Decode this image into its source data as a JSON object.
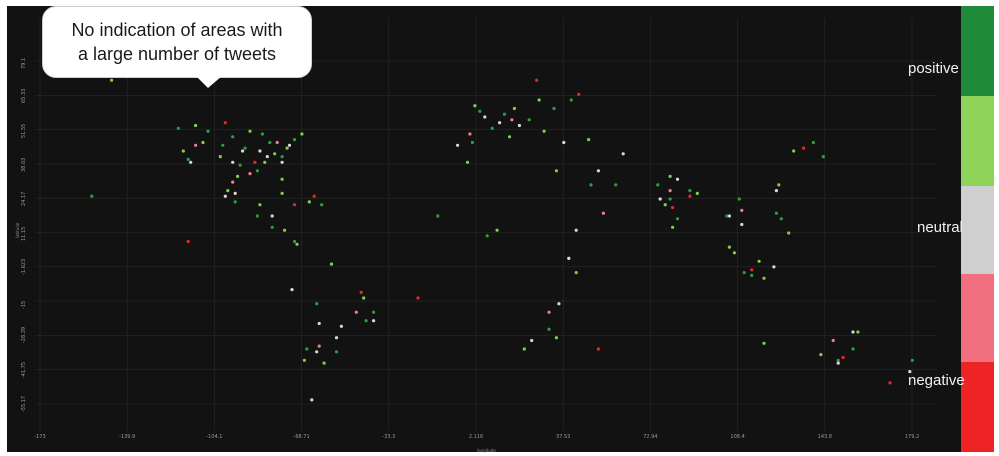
{
  "callout": {
    "lines": [
      "No indication of areas with",
      "a large number of tweets"
    ]
  },
  "legend": {
    "items": [
      {
        "label": "positive",
        "color": "#1f8b3a"
      },
      {
        "label": "",
        "color": "#8fd35a"
      },
      {
        "label": "neutral",
        "color": "#cfcfcf"
      },
      {
        "label": "",
        "color": "#f07080"
      },
      {
        "label": "negative",
        "color": "#ee2424"
      }
    ]
  },
  "colors": {
    "background": "#121212",
    "grid": "#2a2a2a",
    "tick": "#9a9a9a",
    "points": {
      "positive": "#2aa040",
      "light_positive": "#7ed04e",
      "neutral": "#d8d8d8",
      "light_negative": "#f27d8c",
      "negative": "#ee2424"
    }
  },
  "chart_data": {
    "type": "scatter",
    "title": "",
    "xlabel": "longitude",
    "ylabel": "latitude",
    "x_ticks": [
      "-173",
      "-139.9",
      "-104.1",
      "-68.71",
      "-33.3",
      "2.116",
      "37.53",
      "72.94",
      "108.4",
      "143.8",
      "179.2"
    ],
    "y_ticks": [
      "79.1",
      "65.33",
      "51.55",
      "38.03",
      "24.17",
      "11.15",
      "-1.623",
      "-15",
      "-28.39",
      "-41.75",
      "-55.17"
    ],
    "xlim": [
      -180,
      185
    ],
    "ylim": [
      -62,
      84
    ],
    "grid": true,
    "legend": "right",
    "series": [
      {
        "sentiment": "positive",
        "points": [
          [
            -118,
            34
          ],
          [
            -100,
            42
          ],
          [
            -95,
            38
          ],
          [
            -85,
            40
          ],
          [
            -80,
            35
          ],
          [
            -90,
            30
          ],
          [
            -110,
            44
          ],
          [
            -75,
            41
          ],
          [
            -122,
            45
          ],
          [
            -97,
            32
          ],
          [
            -88,
            43
          ],
          [
            -104,
            39
          ],
          [
            0,
            51
          ],
          [
            10,
            50
          ],
          [
            20,
            48
          ],
          [
            5,
            45
          ],
          [
            -3,
            40
          ],
          [
            30,
            52
          ],
          [
            37,
            55
          ],
          [
            77,
            20
          ],
          [
            72,
            25
          ],
          [
            80,
            13
          ],
          [
            85,
            23
          ],
          [
            100,
            14
          ],
          [
            105,
            20
          ],
          [
            120,
            15
          ],
          [
            122,
            13
          ],
          [
            110,
            -7
          ],
          [
            107,
            -6
          ],
          [
            139,
            35
          ],
          [
            135,
            40
          ],
          [
            -46,
            -23
          ],
          [
            -58,
            -34
          ],
          [
            -70,
            -33
          ],
          [
            -75,
            5
          ],
          [
            -66,
            -17
          ],
          [
            -43,
            -20
          ],
          [
            151,
            -33
          ],
          [
            145,
            -37
          ],
          [
            175,
            -37
          ],
          [
            28,
            -26
          ],
          [
            36,
            -1
          ],
          [
            3,
            7
          ],
          [
            -17,
            14
          ],
          [
            45,
            25
          ],
          [
            55,
            25
          ],
          [
            -99,
            19
          ],
          [
            -90,
            14
          ],
          [
            -84,
            10
          ],
          [
            -157,
            21
          ],
          [
            -64,
            18
          ]
        ]
      },
      {
        "sentiment": "light_positive",
        "points": [
          [
            -112,
            40
          ],
          [
            -93,
            44
          ],
          [
            -83,
            36
          ],
          [
            -78,
            38
          ],
          [
            -98,
            28
          ],
          [
            -120,
            37
          ],
          [
            -105,
            35
          ],
          [
            -87,
            33
          ],
          [
            -80,
            27
          ],
          [
            -72,
            43
          ],
          [
            -115,
            46
          ],
          [
            14,
            52
          ],
          [
            24,
            55
          ],
          [
            -2,
            53
          ],
          [
            12,
            42
          ],
          [
            26,
            44
          ],
          [
            44,
            41
          ],
          [
            77,
            28
          ],
          [
            75,
            18
          ],
          [
            88,
            22
          ],
          [
            78,
            10
          ],
          [
            101,
            3
          ],
          [
            103,
            1
          ],
          [
            115,
            -8
          ],
          [
            113,
            -2
          ],
          [
            125,
            8
          ],
          [
            121,
            25
          ],
          [
            127,
            37
          ],
          [
            -74,
            4
          ],
          [
            -47,
            -15
          ],
          [
            -60,
            -3
          ],
          [
            -63,
            -38
          ],
          [
            -71,
            -37
          ],
          [
            153,
            -27
          ],
          [
            115,
            -31
          ],
          [
            138,
            -35
          ],
          [
            18,
            -33
          ],
          [
            31,
            -29
          ],
          [
            39,
            -6
          ],
          [
            7,
            9
          ],
          [
            -5,
            33
          ],
          [
            31,
            30
          ],
          [
            -102,
            23
          ],
          [
            -89,
            18
          ],
          [
            -79,
            9
          ],
          [
            -80,
            22
          ],
          [
            -69,
            19
          ],
          [
            -149,
            62
          ]
        ]
      },
      {
        "sentiment": "neutral",
        "points": [
          [
            -96,
            37
          ],
          [
            -89,
            37
          ],
          [
            -117,
            33
          ],
          [
            -80,
            33
          ],
          [
            -86,
            35
          ],
          [
            -77,
            39
          ],
          [
            -100,
            33
          ],
          [
            2,
            49
          ],
          [
            8,
            47
          ],
          [
            16,
            46
          ],
          [
            -9,
            39
          ],
          [
            34,
            40
          ],
          [
            73,
            20
          ],
          [
            80,
            27
          ],
          [
            101,
            14
          ],
          [
            120,
            23
          ],
          [
            106,
            11
          ],
          [
            119,
            -4
          ],
          [
            -43,
            -23
          ],
          [
            -65,
            -24
          ],
          [
            -58,
            -29
          ],
          [
            -76,
            -12
          ],
          [
            -56,
            -25
          ],
          [
            145,
            -38
          ],
          [
            151,
            -27
          ],
          [
            174,
            -41
          ],
          [
            21,
            -30
          ],
          [
            32,
            -17
          ],
          [
            36,
            -1
          ],
          [
            39,
            9
          ],
          [
            48,
            30
          ],
          [
            58,
            36
          ],
          [
            -99,
            22
          ],
          [
            -103,
            21
          ],
          [
            -84,
            14
          ],
          [
            -66,
            -34
          ],
          [
            -68,
            -51
          ]
        ]
      },
      {
        "sentiment": "light_negative",
        "points": [
          [
            -115,
            39
          ],
          [
            -82,
            40
          ],
          [
            -93,
            29
          ],
          [
            13,
            48
          ],
          [
            -4,
            43
          ],
          [
            77,
            23
          ],
          [
            106,
            16
          ],
          [
            -50,
            -20
          ],
          [
            -65,
            -32
          ],
          [
            143,
            -30
          ],
          [
            28,
            -20
          ],
          [
            50,
            15
          ],
          [
            -100,
            26
          ]
        ]
      },
      {
        "sentiment": "negative",
        "points": [
          [
            -103,
            47
          ],
          [
            -91,
            33
          ],
          [
            -75,
            18
          ],
          [
            23,
            62
          ],
          [
            40,
            57
          ],
          [
            85,
            21
          ],
          [
            78,
            17
          ],
          [
            110,
            -5
          ],
          [
            131,
            38
          ],
          [
            -67,
            21
          ],
          [
            -48,
            -13
          ],
          [
            -25,
            -15
          ],
          [
            48,
            -33
          ],
          [
            147,
            -36
          ],
          [
            166,
            -45
          ],
          [
            -118,
            5
          ]
        ]
      }
    ]
  }
}
